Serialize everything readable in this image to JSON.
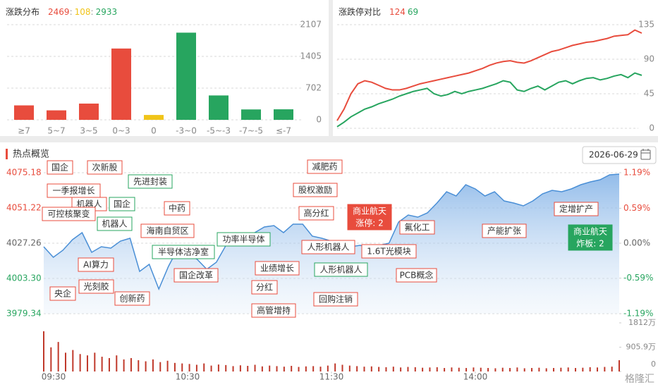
{
  "chart_data": [
    {
      "type": "bar",
      "title": "涨跌分布",
      "summary": [
        {
          "value": 2469,
          "color": "#e84c3d"
        },
        {
          "value": 108,
          "color": "#f0c419"
        },
        {
          "value": 2933,
          "color": "#27a55f"
        }
      ],
      "separator": ":",
      "categories": [
        "≥7",
        "5~7",
        "3~5",
        "0~3",
        "0",
        "-3~0",
        "-5~-3",
        "-7~-5",
        "≤-7"
      ],
      "values": [
        320,
        210,
        360,
        1579,
        108,
        1930,
        540,
        230,
        233
      ],
      "colors": [
        "#e84c3d",
        "#e84c3d",
        "#e84c3d",
        "#e84c3d",
        "#f0c419",
        "#27a55f",
        "#27a55f",
        "#27a55f",
        "#27a55f"
      ],
      "ylim": [
        0,
        2107
      ],
      "yticks": [
        0,
        702,
        1405,
        2107
      ],
      "grid": true
    },
    {
      "type": "line",
      "title": "涨跌停对比",
      "summary": [
        {
          "value": 124,
          "color": "#e84c3d"
        },
        {
          "value": 69,
          "color": "#27a55f"
        }
      ],
      "series": [
        {
          "color": "#e84c3d",
          "values": [
            10,
            25,
            45,
            58,
            62,
            60,
            56,
            52,
            50,
            50,
            52,
            55,
            58,
            60,
            62,
            64,
            66,
            68,
            70,
            72,
            75,
            78,
            82,
            85,
            87,
            88,
            86,
            85,
            88,
            92,
            96,
            100,
            102,
            105,
            108,
            110,
            112,
            113,
            115,
            117,
            120,
            121,
            122,
            128,
            124
          ]
        },
        {
          "color": "#27a55f",
          "values": [
            2,
            8,
            15,
            20,
            25,
            28,
            32,
            35,
            38,
            42,
            45,
            48,
            50,
            52,
            45,
            42,
            44,
            48,
            45,
            48,
            50,
            52,
            55,
            58,
            62,
            60,
            50,
            48,
            52,
            55,
            50,
            55,
            60,
            62,
            58,
            62,
            65,
            66,
            63,
            65,
            68,
            70,
            66,
            72,
            69
          ]
        }
      ],
      "ylim": [
        0,
        135
      ],
      "yticks": [
        0,
        45,
        90,
        135
      ],
      "grid": true
    },
    {
      "type": "area",
      "title": "热点概览",
      "date": "2026-06-29",
      "color": "#4a8fd6",
      "values": [
        4024.86,
        4017.67,
        4022.47,
        4029.66,
        4034.45,
        4021.03,
        4024.86,
        4023.91,
        4028.7,
        4030.62,
        4008.09,
        4012.89,
        3996.11,
        4011.45,
        4023.91,
        4020.07,
        4016.24,
        4009.53,
        4014.32,
        4025.82,
        4027.26,
        4030.62,
        4034.45,
        4038.28,
        4039.24,
        4034.45,
        4040.2,
        4040.2,
        4032.05,
        4030.62,
        4028.7,
        4023.91,
        4024.86,
        4025.82,
        4023.91,
        4025.82,
        4027.26,
        4041.63,
        4046.43,
        4044.99,
        4047.87,
        4054.57,
        4062.24,
        4059.37,
        4067.03,
        4064.16,
        4059.37,
        4062.24,
        4056.01,
        4054.57,
        4052.66,
        4056.01,
        4060.8,
        4063.2,
        4062.24,
        4064.16,
        4067.03,
        4068.95,
        4070.39,
        4073.74,
        4074.22
      ],
      "xlim": [
        0,
        240
      ],
      "xticks": [
        {
          "value": 0,
          "label": "09:30"
        },
        {
          "value": 60,
          "label": "10:30"
        },
        {
          "value": 120,
          "label": "11:30"
        },
        {
          "value": 180,
          "label": "14:00"
        }
      ],
      "ylim": [
        3979.34,
        4075.18
      ],
      "yticks": [
        4075.18,
        4051.22,
        4027.26,
        {
          "value": 4003.3,
          "label": "4003.30"
        },
        3979.34
      ],
      "ytick_colors": [
        "#e84c3d",
        "#e84c3d",
        "#666666",
        "#27a55f",
        "#27a55f"
      ],
      "y2lim": [
        -1.19,
        1.19
      ],
      "y2ticks": [
        {
          "value": 1.19,
          "label": "1.19%"
        },
        {
          "value": 0.59,
          "label": "0.59%"
        },
        {
          "value": 0,
          "label": "0.00%"
        },
        {
          "value": -0.59,
          "label": "-0.59%"
        },
        {
          "value": -1.19,
          "label": "-1.19%"
        }
      ],
      "y2tick_colors": [
        "#e84c3d",
        "#e84c3d",
        "#666666",
        "#27a55f",
        "#27a55f"
      ],
      "grid": true,
      "annotations": [
        {
          "lines": [
            "国企"
          ],
          "color": "#e84c3d",
          "style": "outline"
        },
        {
          "lines": [
            "次新股"
          ],
          "color": "#e84c3d",
          "style": "outline"
        },
        {
          "lines": [
            "一季报增长"
          ],
          "color": "#e84c3d",
          "style": "outline"
        },
        {
          "lines": [
            "机器人"
          ],
          "color": "#e84c3d",
          "style": "outline"
        },
        {
          "lines": [
            "国企"
          ],
          "color": "#27a55f",
          "style": "outline"
        },
        {
          "lines": [
            "可控核聚变"
          ],
          "color": "#e84c3d",
          "style": "outline"
        },
        {
          "lines": [
            "先进封装"
          ],
          "color": "#27a55f",
          "style": "outline"
        },
        {
          "lines": [
            "机器人"
          ],
          "color": "#27a55f",
          "style": "outline"
        },
        {
          "lines": [
            "中药"
          ],
          "color": "#e84c3d",
          "style": "outline"
        },
        {
          "lines": [
            "海南自贸区"
          ],
          "color": "#e84c3d",
          "style": "outline"
        },
        {
          "lines": [
            "半导体洁净室"
          ],
          "color": "#27a55f",
          "style": "outline"
        },
        {
          "lines": [
            "AI算力"
          ],
          "color": "#e84c3d",
          "style": "outline"
        },
        {
          "lines": [
            "国企改革"
          ],
          "color": "#e84c3d",
          "style": "outline"
        },
        {
          "lines": [
            "功率半导体"
          ],
          "color": "#27a55f",
          "style": "outline"
        },
        {
          "lines": [
            "央企"
          ],
          "color": "#e84c3d",
          "style": "outline"
        },
        {
          "lines": [
            "光刻胶"
          ],
          "color": "#e84c3d",
          "style": "outline"
        },
        {
          "lines": [
            "创新药"
          ],
          "color": "#e84c3d",
          "style": "outline"
        },
        {
          "lines": [
            "业绩增长"
          ],
          "color": "#e84c3d",
          "style": "outline"
        },
        {
          "lines": [
            "分红"
          ],
          "color": "#e84c3d",
          "style": "outline"
        },
        {
          "lines": [
            "高管增持"
          ],
          "color": "#e84c3d",
          "style": "outline"
        },
        {
          "lines": [
            "减肥药"
          ],
          "color": "#e84c3d",
          "style": "outline"
        },
        {
          "lines": [
            "股权激励"
          ],
          "color": "#e84c3d",
          "style": "outline"
        },
        {
          "lines": [
            "高分红"
          ],
          "color": "#e84c3d",
          "style": "outline"
        },
        {
          "lines": [
            "人形机器人"
          ],
          "color": "#e84c3d",
          "style": "outline"
        },
        {
          "lines": [
            "人形机器人"
          ],
          "color": "#27a55f",
          "style": "outline"
        },
        {
          "lines": [
            "回购注销"
          ],
          "color": "#e84c3d",
          "style": "outline"
        },
        {
          "lines": [
            "商业航天",
            "涨停: 2"
          ],
          "color": "#e84c3d",
          "style": "solid"
        },
        {
          "lines": [
            "1.6T光模块"
          ],
          "color": "#e84c3d",
          "style": "outline"
        },
        {
          "lines": [
            "氟化工"
          ],
          "color": "#e84c3d",
          "style": "outline"
        },
        {
          "lines": [
            "PCB概念"
          ],
          "color": "#e84c3d",
          "style": "outline"
        },
        {
          "lines": [
            "产能扩张"
          ],
          "color": "#e84c3d",
          "style": "outline"
        },
        {
          "lines": [
            "定增扩产"
          ],
          "color": "#e84c3d",
          "style": "outline"
        },
        {
          "lines": [
            "商业航天",
            "炸板: 2"
          ],
          "color": "#27a55f",
          "style": "solid"
        }
      ]
    },
    {
      "type": "bar",
      "color": "#c0392b",
      "values": [
        1500,
        900,
        1100,
        700,
        800,
        650,
        600,
        700,
        550,
        500,
        600,
        450,
        500,
        420,
        380,
        450,
        350,
        400,
        320,
        300,
        280,
        250,
        300,
        220,
        260,
        240,
        200,
        230,
        210,
        250,
        190,
        220,
        200,
        180,
        210,
        170,
        190,
        200,
        180,
        220,
        300,
        250,
        220,
        200,
        180,
        190,
        170,
        160,
        180,
        150,
        170,
        160,
        140,
        150,
        160,
        130,
        150,
        140,
        130,
        150,
        140,
        130,
        120,
        140,
        130,
        150,
        120,
        130,
        140,
        120,
        130,
        140,
        150,
        130,
        140,
        160,
        150,
        170,
        180,
        420
      ],
      "ylim": [
        0,
        1812
      ],
      "yticks": [
        {
          "value": 1812,
          "label": "1812万"
        },
        {
          "value": 905.9,
          "label": "905.9万"
        },
        0
      ]
    }
  ],
  "watermark": "格隆汇"
}
